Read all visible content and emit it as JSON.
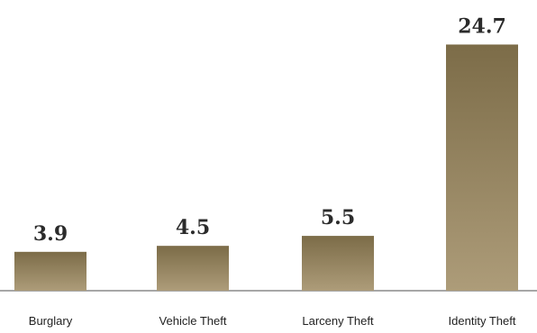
{
  "chart_data": {
    "type": "bar",
    "title": "",
    "xlabel": "",
    "ylabel": "",
    "categories": [
      "Burglary",
      "Vehicle Theft",
      "Larceny Theft",
      "Identity Theft"
    ],
    "values": [
      3.9,
      4.5,
      5.5,
      24.7
    ],
    "value_labels": [
      "3.9",
      "4.5",
      "5.5",
      "24.7"
    ],
    "ylim": [
      0,
      27
    ],
    "grid": false,
    "legend": "none",
    "colors": {
      "bar_top": "#7c6c48",
      "bar_bottom": "#ad9c79",
      "baseline": "#8a8a8a",
      "text": "#222222"
    }
  }
}
